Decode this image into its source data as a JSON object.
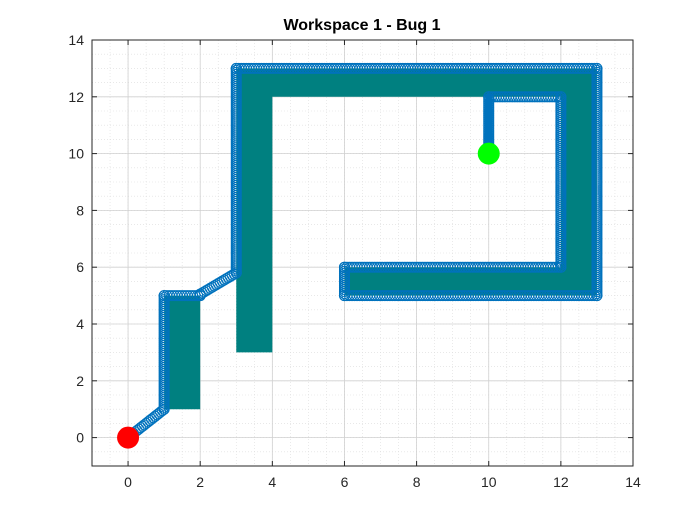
{
  "chart_data": {
    "type": "scatter",
    "title": "Workspace 1 - Bug 1",
    "xlabel": "",
    "ylabel": "",
    "xlim": [
      -1,
      14
    ],
    "ylim": [
      -1,
      14
    ],
    "xticks": [
      0,
      2,
      4,
      6,
      8,
      10,
      12,
      14
    ],
    "yticks": [
      0,
      2,
      4,
      6,
      8,
      10,
      12,
      14
    ],
    "x_tick_labels": [
      "0",
      "2",
      "4",
      "6",
      "8",
      "10",
      "12",
      "14"
    ],
    "y_tick_labels": [
      "0",
      "2",
      "4",
      "6",
      "8",
      "10",
      "12",
      "14"
    ],
    "grid": true,
    "minor_grid": true,
    "obstacles": [
      {
        "vertices": [
          [
            1,
            1
          ],
          [
            2,
            1
          ],
          [
            2,
            5
          ],
          [
            1,
            5
          ]
        ],
        "color": "#008080"
      },
      {
        "vertices": [
          [
            3,
            3
          ],
          [
            4,
            3
          ],
          [
            4,
            12
          ],
          [
            12,
            12
          ],
          [
            12,
            6
          ],
          [
            6,
            6
          ],
          [
            6,
            5
          ],
          [
            13,
            5
          ],
          [
            13,
            13
          ],
          [
            3,
            13
          ]
        ],
        "color": "#008080"
      }
    ],
    "path": [
      [
        0,
        0
      ],
      [
        1,
        1
      ],
      [
        1,
        5
      ],
      [
        2,
        5
      ],
      [
        2,
        5.05
      ],
      [
        3,
        5.8
      ],
      [
        3,
        13
      ],
      [
        13,
        13
      ],
      [
        13,
        5
      ],
      [
        6,
        5
      ],
      [
        6,
        6
      ],
      [
        12,
        6
      ],
      [
        12,
        12
      ],
      [
        10,
        12
      ],
      [
        10,
        10
      ]
    ],
    "final_leg": {
      "from": [
        10,
        12
      ],
      "to": [
        10,
        10
      ]
    },
    "path_color": "#0072BD",
    "start": {
      "x": 0,
      "y": 0,
      "color": "#ff0000"
    },
    "goal": {
      "x": 10,
      "y": 10,
      "color": "#00ff00"
    }
  }
}
